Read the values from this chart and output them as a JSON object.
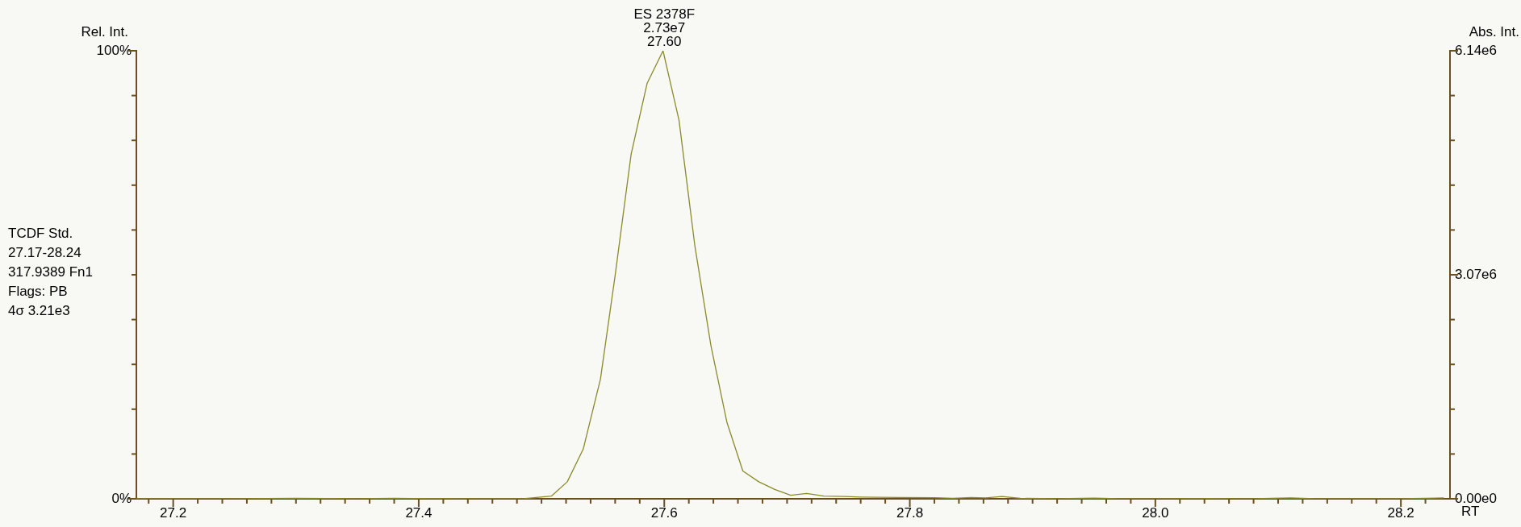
{
  "chart_data": {
    "type": "line",
    "ylabel": "Rel. Int.",
    "y2label": "Abs. Int.",
    "xlabel": "RT",
    "annotations": [
      {
        "text": "ES 2378F\n2.73e7\n27.60",
        "x": 27.6,
        "y": 100
      },
      "TCDF Std.\n27.17-28.24\n317.9389 Fn1\nFlags: PB\n4σ 3.21e3"
    ],
    "series": [
      {
        "color": "#8a8a2a",
        "x": [
          27.17,
          27.25,
          27.3,
          27.35,
          27.38,
          27.45,
          27.485,
          27.508,
          27.521,
          27.534,
          27.548,
          27.56,
          27.573,
          27.586,
          27.599,
          27.612,
          27.625,
          27.638,
          27.651,
          27.664,
          27.677,
          27.69,
          27.703,
          27.716,
          27.73,
          27.747,
          27.76,
          27.79,
          27.82,
          27.835,
          27.85,
          27.862,
          27.875,
          27.89,
          27.92,
          27.95,
          27.97,
          28.0,
          28.05,
          28.08,
          28.11,
          28.13,
          28.2,
          28.235
        ],
        "values": [
          0,
          0,
          0.1,
          0,
          0.1,
          0,
          0,
          0.6,
          3.8,
          11.1,
          26.7,
          49.9,
          76.9,
          92.7,
          100,
          84.5,
          56.3,
          34.2,
          17.1,
          6.2,
          3.8,
          2.1,
          0.8,
          1.2,
          0.6,
          0.5,
          0.4,
          0.3,
          0.25,
          0.1,
          0.3,
          0.2,
          0.5,
          0.1,
          0,
          0.15,
          0,
          0,
          0.05,
          0,
          0.2,
          0,
          0,
          0.2
        ]
      }
    ],
    "xlim": [
      27.17,
      28.24
    ],
    "xticks": [
      {
        "value": 27.18,
        "label": null
      },
      {
        "value": 27.2,
        "label": "27.2"
      },
      {
        "value": 27.22,
        "label": null
      },
      {
        "value": 27.24,
        "label": null
      },
      {
        "value": 27.26,
        "label": null
      },
      {
        "value": 27.28,
        "label": null
      },
      {
        "value": 27.3,
        "label": null
      },
      {
        "value": 27.32,
        "label": null
      },
      {
        "value": 27.34,
        "label": null
      },
      {
        "value": 27.36,
        "label": null
      },
      {
        "value": 27.38,
        "label": null
      },
      {
        "value": 27.4,
        "label": "27.4"
      },
      {
        "value": 27.42,
        "label": null
      },
      {
        "value": 27.44,
        "label": null
      },
      {
        "value": 27.46,
        "label": null
      },
      {
        "value": 27.48,
        "label": null
      },
      {
        "value": 27.5,
        "label": null
      },
      {
        "value": 27.52,
        "label": null
      },
      {
        "value": 27.54,
        "label": null
      },
      {
        "value": 27.56,
        "label": null
      },
      {
        "value": 27.58,
        "label": null
      },
      {
        "value": 27.6,
        "label": "27.6"
      },
      {
        "value": 27.62,
        "label": null
      },
      {
        "value": 27.64,
        "label": null
      },
      {
        "value": 27.66,
        "label": null
      },
      {
        "value": 27.68,
        "label": null
      },
      {
        "value": 27.7,
        "label": null
      },
      {
        "value": 27.72,
        "label": null
      },
      {
        "value": 27.74,
        "label": null
      },
      {
        "value": 27.76,
        "label": null
      },
      {
        "value": 27.78,
        "label": null
      },
      {
        "value": 27.8,
        "label": "27.8"
      },
      {
        "value": 27.82,
        "label": null
      },
      {
        "value": 27.84,
        "label": null
      },
      {
        "value": 27.86,
        "label": null
      },
      {
        "value": 27.88,
        "label": null
      },
      {
        "value": 27.9,
        "label": null
      },
      {
        "value": 27.92,
        "label": null
      },
      {
        "value": 27.94,
        "label": null
      },
      {
        "value": 27.96,
        "label": null
      },
      {
        "value": 27.98,
        "label": null
      },
      {
        "value": 28.0,
        "label": "28.0"
      },
      {
        "value": 28.02,
        "label": null
      },
      {
        "value": 28.04,
        "label": null
      },
      {
        "value": 28.06,
        "label": null
      },
      {
        "value": 28.08,
        "label": null
      },
      {
        "value": 28.1,
        "label": null
      },
      {
        "value": 28.12,
        "label": null
      },
      {
        "value": 28.14,
        "label": null
      },
      {
        "value": 28.16,
        "label": null
      },
      {
        "value": 28.18,
        "label": null
      },
      {
        "value": 28.2,
        "label": "28.2"
      },
      {
        "value": 28.22,
        "label": null
      }
    ],
    "ylim": [
      0,
      100
    ],
    "yticks": [
      {
        "value": 0,
        "label": "0%"
      },
      {
        "value": 10,
        "label": null
      },
      {
        "value": 20,
        "label": null
      },
      {
        "value": 30,
        "label": null
      },
      {
        "value": 40,
        "label": null
      },
      {
        "value": 50,
        "label": null
      },
      {
        "value": 60,
        "label": null
      },
      {
        "value": 70,
        "label": null
      },
      {
        "value": 80,
        "label": null
      },
      {
        "value": 90,
        "label": null
      },
      {
        "value": 100,
        "label": "100%"
      }
    ],
    "y2lim": [
      0,
      6140000
    ],
    "y2ticks": [
      {
        "value": 0,
        "label": "0.00e0"
      },
      {
        "value": 614000,
        "label": null
      },
      {
        "value": 1228000,
        "label": null
      },
      {
        "value": 1842000,
        "label": null
      },
      {
        "value": 2456000,
        "label": null
      },
      {
        "value": 3070000,
        "label": "3.07e6"
      },
      {
        "value": 3684000,
        "label": null
      },
      {
        "value": 4298000,
        "label": null
      },
      {
        "value": 4912000,
        "label": null
      },
      {
        "value": 5526000,
        "label": null
      },
      {
        "value": 6140000,
        "label": "6.14e6"
      }
    ],
    "grid": false,
    "legend": false,
    "marker": "none",
    "line_style": "solid"
  }
}
